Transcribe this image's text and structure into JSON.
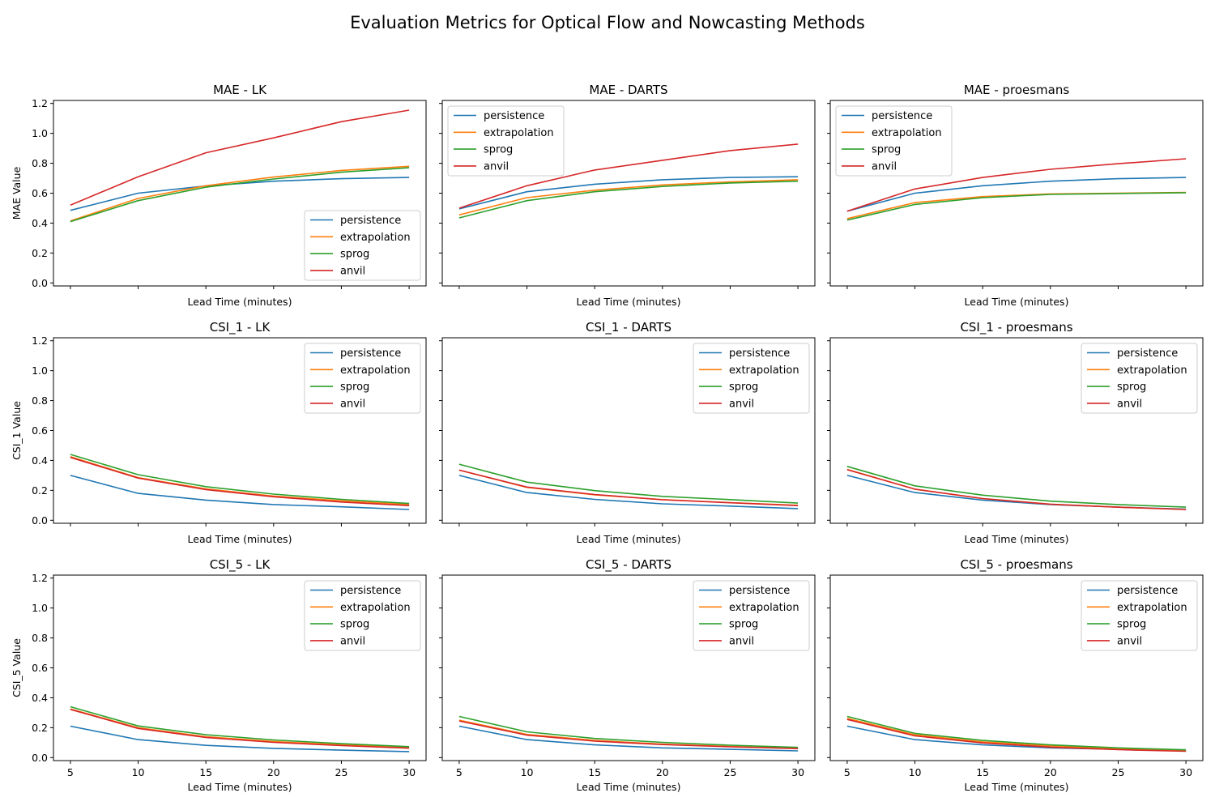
{
  "suptitle": "Evaluation Metrics for Optical Flow and Nowcasting Methods",
  "colors": {
    "persistence": "#1f77b4",
    "extrapolation": "#ff7f0e",
    "sprog": "#2ca02c",
    "anvil": "#d62728"
  },
  "chart_data": [
    {
      "type": "line",
      "title": "MAE - LK",
      "xlabel": "Lead Time (minutes)",
      "ylabel": "MAE Value",
      "x": [
        5,
        10,
        15,
        20,
        25,
        30
      ],
      "xlim": [
        3.75,
        31.25
      ],
      "ylim": [
        -0.02,
        1.22
      ],
      "yticks": [
        0.0,
        0.2,
        0.4,
        0.6,
        0.8,
        1.0,
        1.2
      ],
      "xticks": [
        5,
        10,
        15,
        20,
        25,
        30
      ],
      "legend": "lower-right",
      "grid": false,
      "series": [
        {
          "name": "persistence",
          "values": [
            0.485,
            0.6,
            0.648,
            0.68,
            0.697,
            0.705
          ]
        },
        {
          "name": "extrapolation",
          "values": [
            0.415,
            0.565,
            0.65,
            0.708,
            0.752,
            0.78
          ]
        },
        {
          "name": "sprog",
          "values": [
            0.41,
            0.55,
            0.64,
            0.695,
            0.74,
            0.77
          ]
        },
        {
          "name": "anvil",
          "values": [
            0.52,
            0.71,
            0.87,
            0.97,
            1.078,
            1.155
          ]
        }
      ]
    },
    {
      "type": "line",
      "title": "MAE - DARTS",
      "xlabel": "Lead Time (minutes)",
      "ylabel": "",
      "x": [
        5,
        10,
        15,
        20,
        25,
        30
      ],
      "xlim": [
        3.75,
        31.25
      ],
      "ylim": [
        -0.02,
        1.22
      ],
      "yticks": [
        0.0,
        0.2,
        0.4,
        0.6,
        0.8,
        1.0,
        1.2
      ],
      "xticks": [
        5,
        10,
        15,
        20,
        25,
        30
      ],
      "legend": "upper-left",
      "grid": false,
      "series": [
        {
          "name": "persistence",
          "values": [
            0.495,
            0.61,
            0.66,
            0.69,
            0.705,
            0.71
          ]
        },
        {
          "name": "extrapolation",
          "values": [
            0.455,
            0.57,
            0.62,
            0.655,
            0.675,
            0.69
          ]
        },
        {
          "name": "sprog",
          "values": [
            0.435,
            0.55,
            0.61,
            0.645,
            0.668,
            0.68
          ]
        },
        {
          "name": "anvil",
          "values": [
            0.5,
            0.65,
            0.755,
            0.82,
            0.885,
            0.928
          ]
        }
      ]
    },
    {
      "type": "line",
      "title": "MAE - proesmans",
      "xlabel": "Lead Time (minutes)",
      "ylabel": "",
      "x": [
        5,
        10,
        15,
        20,
        25,
        30
      ],
      "xlim": [
        3.75,
        31.25
      ],
      "ylim": [
        -0.02,
        1.22
      ],
      "yticks": [
        0.0,
        0.2,
        0.4,
        0.6,
        0.8,
        1.0,
        1.2
      ],
      "xticks": [
        5,
        10,
        15,
        20,
        25,
        30
      ],
      "legend": "upper-left",
      "grid": false,
      "series": [
        {
          "name": "persistence",
          "values": [
            0.48,
            0.6,
            0.65,
            0.68,
            0.697,
            0.705
          ]
        },
        {
          "name": "extrapolation",
          "values": [
            0.43,
            0.537,
            0.577,
            0.595,
            0.6,
            0.605
          ]
        },
        {
          "name": "sprog",
          "values": [
            0.42,
            0.525,
            0.57,
            0.592,
            0.598,
            0.603
          ]
        },
        {
          "name": "anvil",
          "values": [
            0.48,
            0.628,
            0.705,
            0.76,
            0.797,
            0.83
          ]
        }
      ]
    },
    {
      "type": "line",
      "title": "CSI_1 - LK",
      "xlabel": "Lead Time (minutes)",
      "ylabel": "CSI_1 Value",
      "x": [
        5,
        10,
        15,
        20,
        25,
        30
      ],
      "xlim": [
        3.75,
        31.25
      ],
      "ylim": [
        -0.02,
        1.22
      ],
      "yticks": [
        0.0,
        0.2,
        0.4,
        0.6,
        0.8,
        1.0,
        1.2
      ],
      "xticks": [
        5,
        10,
        15,
        20,
        25,
        30
      ],
      "legend": "upper-right",
      "grid": false,
      "series": [
        {
          "name": "persistence",
          "values": [
            0.3,
            0.18,
            0.135,
            0.105,
            0.09,
            0.072
          ]
        },
        {
          "name": "extrapolation",
          "values": [
            0.425,
            0.285,
            0.21,
            0.162,
            0.13,
            0.105
          ]
        },
        {
          "name": "sprog",
          "values": [
            0.44,
            0.305,
            0.225,
            0.175,
            0.14,
            0.112
          ]
        },
        {
          "name": "anvil",
          "values": [
            0.42,
            0.282,
            0.205,
            0.157,
            0.122,
            0.098
          ]
        }
      ]
    },
    {
      "type": "line",
      "title": "CSI_1 - DARTS",
      "xlabel": "Lead Time (minutes)",
      "ylabel": "",
      "x": [
        5,
        10,
        15,
        20,
        25,
        30
      ],
      "xlim": [
        3.75,
        31.25
      ],
      "ylim": [
        -0.02,
        1.22
      ],
      "yticks": [
        0.0,
        0.2,
        0.4,
        0.6,
        0.8,
        1.0,
        1.2
      ],
      "xticks": [
        5,
        10,
        15,
        20,
        25,
        30
      ],
      "legend": "upper-right",
      "grid": false,
      "series": [
        {
          "name": "persistence",
          "values": [
            0.3,
            0.185,
            0.14,
            0.11,
            0.095,
            0.078
          ]
        },
        {
          "name": "extrapolation",
          "values": [
            0.335,
            0.22,
            0.17,
            0.138,
            0.118,
            0.1
          ]
        },
        {
          "name": "sprog",
          "values": [
            0.375,
            0.255,
            0.198,
            0.16,
            0.138,
            0.115
          ]
        },
        {
          "name": "anvil",
          "values": [
            0.335,
            0.222,
            0.172,
            0.137,
            0.117,
            0.098
          ]
        }
      ]
    },
    {
      "type": "line",
      "title": "CSI_1 - proesmans",
      "xlabel": "Lead Time (minutes)",
      "ylabel": "",
      "x": [
        5,
        10,
        15,
        20,
        25,
        30
      ],
      "xlim": [
        3.75,
        31.25
      ],
      "ylim": [
        -0.02,
        1.22
      ],
      "yticks": [
        0.0,
        0.2,
        0.4,
        0.6,
        0.8,
        1.0,
        1.2
      ],
      "xticks": [
        5,
        10,
        15,
        20,
        25,
        30
      ],
      "legend": "upper-right",
      "grid": false,
      "series": [
        {
          "name": "persistence",
          "values": [
            0.3,
            0.185,
            0.135,
            0.105,
            0.088,
            0.075
          ]
        },
        {
          "name": "extrapolation",
          "values": [
            0.34,
            0.208,
            0.145,
            0.108,
            0.088,
            0.072
          ]
        },
        {
          "name": "sprog",
          "values": [
            0.36,
            0.23,
            0.168,
            0.128,
            0.105,
            0.088
          ]
        },
        {
          "name": "anvil",
          "values": [
            0.338,
            0.208,
            0.145,
            0.107,
            0.087,
            0.072
          ]
        }
      ]
    },
    {
      "type": "line",
      "title": "CSI_5 - LK",
      "xlabel": "Lead Time (minutes)",
      "ylabel": "CSI_5 Value",
      "x": [
        5,
        10,
        15,
        20,
        25,
        30
      ],
      "xlim": [
        3.75,
        31.25
      ],
      "ylim": [
        -0.02,
        1.22
      ],
      "yticks": [
        0.0,
        0.2,
        0.4,
        0.6,
        0.8,
        1.0,
        1.2
      ],
      "xticks": [
        5,
        10,
        15,
        20,
        25,
        30
      ],
      "legend": "upper-right",
      "grid": false,
      "series": [
        {
          "name": "persistence",
          "values": [
            0.21,
            0.12,
            0.082,
            0.062,
            0.05,
            0.04
          ]
        },
        {
          "name": "extrapolation",
          "values": [
            0.325,
            0.2,
            0.14,
            0.108,
            0.085,
            0.068
          ]
        },
        {
          "name": "sprog",
          "values": [
            0.34,
            0.212,
            0.153,
            0.118,
            0.093,
            0.073
          ]
        },
        {
          "name": "anvil",
          "values": [
            0.322,
            0.195,
            0.135,
            0.102,
            0.08,
            0.063
          ]
        }
      ]
    },
    {
      "type": "line",
      "title": "CSI_5 - DARTS",
      "xlabel": "Lead Time (minutes)",
      "ylabel": "",
      "x": [
        5,
        10,
        15,
        20,
        25,
        30
      ],
      "xlim": [
        3.75,
        31.25
      ],
      "ylim": [
        -0.02,
        1.22
      ],
      "yticks": [
        0.0,
        0.2,
        0.4,
        0.6,
        0.8,
        1.0,
        1.2
      ],
      "xticks": [
        5,
        10,
        15,
        20,
        25,
        30
      ],
      "legend": "upper-right",
      "grid": false,
      "series": [
        {
          "name": "persistence",
          "values": [
            0.21,
            0.12,
            0.085,
            0.065,
            0.055,
            0.045
          ]
        },
        {
          "name": "extrapolation",
          "values": [
            0.25,
            0.155,
            0.115,
            0.09,
            0.075,
            0.062
          ]
        },
        {
          "name": "sprog",
          "values": [
            0.275,
            0.172,
            0.128,
            0.102,
            0.083,
            0.068
          ]
        },
        {
          "name": "anvil",
          "values": [
            0.245,
            0.15,
            0.11,
            0.087,
            0.072,
            0.06
          ]
        }
      ]
    },
    {
      "type": "line",
      "title": "CSI_5 - proesmans",
      "xlabel": "Lead Time (minutes)",
      "ylabel": "",
      "x": [
        5,
        10,
        15,
        20,
        25,
        30
      ],
      "xlim": [
        3.75,
        31.25
      ],
      "ylim": [
        -0.02,
        1.22
      ],
      "yticks": [
        0.0,
        0.2,
        0.4,
        0.6,
        0.8,
        1.0,
        1.2
      ],
      "xticks": [
        5,
        10,
        15,
        20,
        25,
        30
      ],
      "legend": "upper-right",
      "grid": false,
      "series": [
        {
          "name": "persistence",
          "values": [
            0.21,
            0.12,
            0.085,
            0.065,
            0.055,
            0.045
          ]
        },
        {
          "name": "extrapolation",
          "values": [
            0.262,
            0.152,
            0.105,
            0.078,
            0.06,
            0.048
          ]
        },
        {
          "name": "sprog",
          "values": [
            0.275,
            0.162,
            0.115,
            0.085,
            0.065,
            0.052
          ]
        },
        {
          "name": "anvil",
          "values": [
            0.255,
            0.145,
            0.098,
            0.07,
            0.053,
            0.042
          ]
        }
      ]
    }
  ]
}
